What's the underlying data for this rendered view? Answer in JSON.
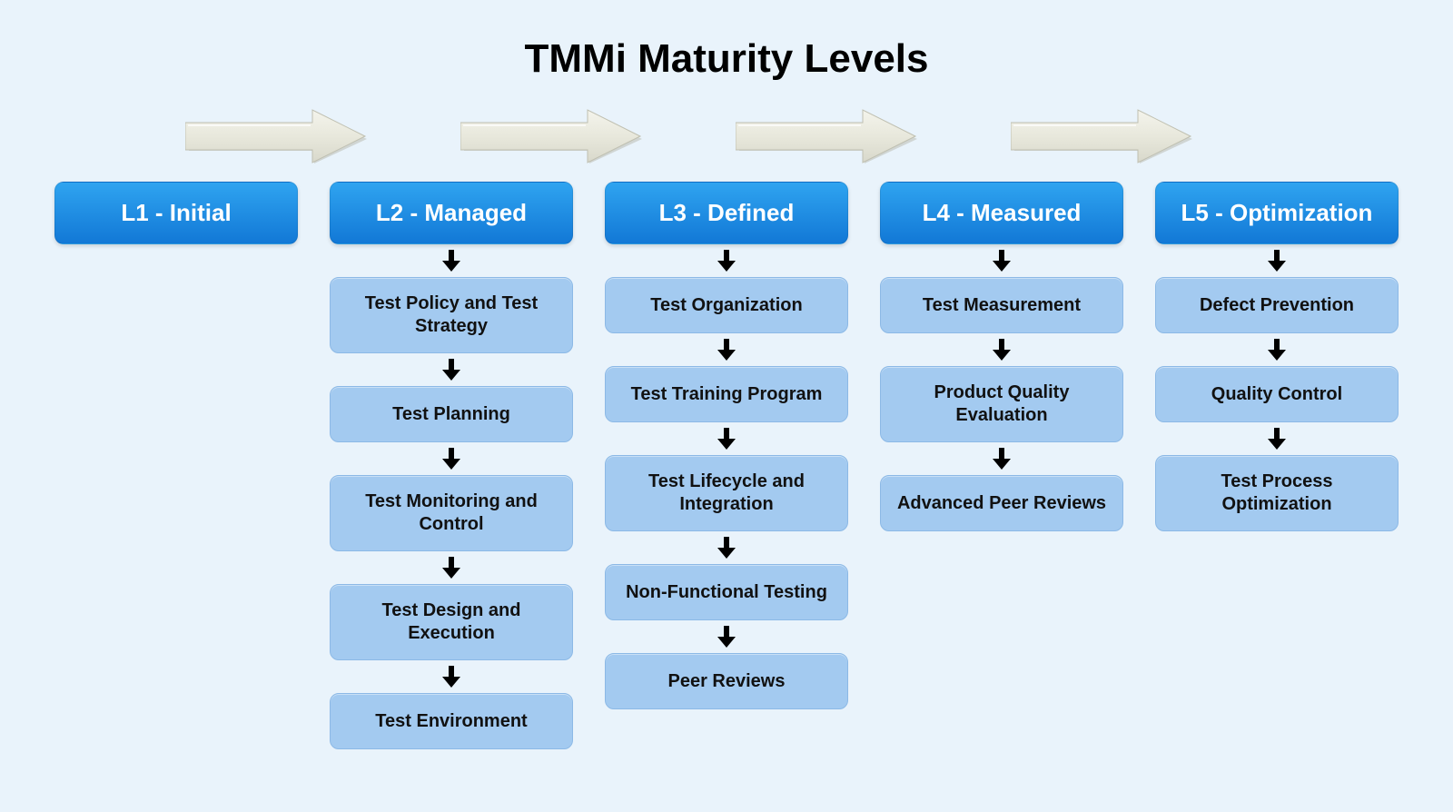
{
  "type": "flowchart",
  "title": "TMMi Maturity Levels",
  "title_fontsize": 44,
  "background_color": "#e9f3fb",
  "header_gradient_top": "#2fa4f0",
  "header_gradient_bottom": "#1278d6",
  "header_text_color": "#ffffff",
  "header_fontsize": 26,
  "item_bg_color": "#a3caf0",
  "item_border_color": "#8cb9e6",
  "item_text_color": "#111111",
  "item_fontsize": 20,
  "big_arrow_fill": "#e8e8dc",
  "big_arrow_stroke": "#bfbfb0",
  "big_arrow_shadow": "#b8b8ab",
  "down_arrow_color": "#000000",
  "columns": [
    {
      "level": "L1 - Initial",
      "items": []
    },
    {
      "level": "L2 - Managed",
      "items": [
        "Test Policy and Test Strategy",
        "Test Planning",
        "Test Monitoring and Control",
        "Test Design and Execution",
        "Test Environment"
      ]
    },
    {
      "level": "L3 - Defined",
      "items": [
        "Test Organization",
        "Test Training Program",
        "Test Lifecycle and Integration",
        "Non-Functional Testing",
        "Peer Reviews"
      ]
    },
    {
      "level": "L4 - Measured",
      "items": [
        "Test Measurement",
        "Product Quality Evaluation",
        "Advanced Peer Reviews"
      ]
    },
    {
      "level": "L5 - Optimization",
      "items": [
        "Defect Prevention",
        "Quality Control",
        "Test Process Optimization"
      ]
    }
  ]
}
